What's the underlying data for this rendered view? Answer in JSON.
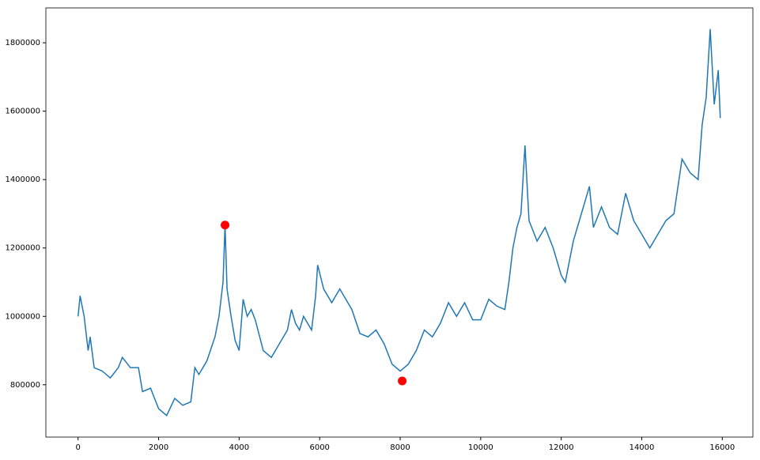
{
  "chart_data": {
    "type": "line",
    "x": [
      0,
      50,
      150,
      250,
      300,
      400,
      600,
      800,
      1000,
      1100,
      1300,
      1500,
      1600,
      1800,
      2000,
      2200,
      2400,
      2600,
      2800,
      2900,
      3000,
      3200,
      3400,
      3500,
      3600,
      3650,
      3700,
      3800,
      3900,
      4000,
      4100,
      4200,
      4300,
      4400,
      4600,
      4800,
      5000,
      5200,
      5300,
      5400,
      5500,
      5600,
      5800,
      5900,
      5950,
      6100,
      6300,
      6500,
      6700,
      6800,
      7000,
      7200,
      7400,
      7600,
      7800,
      8000,
      8200,
      8400,
      8600,
      8800,
      9000,
      9200,
      9400,
      9600,
      9800,
      10000,
      10200,
      10400,
      10600,
      10700,
      10800,
      10900,
      11000,
      11100,
      11200,
      11400,
      11600,
      11800,
      12000,
      12100,
      12300,
      12400,
      12600,
      12700,
      12800,
      13000,
      13200,
      13400,
      13600,
      13800,
      14000,
      14200,
      14400,
      14600,
      14800,
      15000,
      15200,
      15400,
      15500,
      15600,
      15700,
      15800,
      15900,
      15950
    ],
    "series": [
      {
        "color": "#1f77b4",
        "values": [
          1000000,
          1060000,
          1000000,
          900000,
          940000,
          850000,
          840000,
          820000,
          850000,
          880000,
          850000,
          850000,
          780000,
          790000,
          730000,
          710000,
          760000,
          740000,
          750000,
          850000,
          830000,
          870000,
          940000,
          1000000,
          1100000,
          1267000,
          1080000,
          1000000,
          930000,
          900000,
          1050000,
          1000000,
          1020000,
          990000,
          900000,
          880000,
          920000,
          960000,
          1020000,
          980000,
          960000,
          1000000,
          960000,
          1060000,
          1150000,
          1080000,
          1040000,
          1080000,
          1040000,
          1020000,
          950000,
          940000,
          960000,
          920000,
          860000,
          840000,
          860000,
          900000,
          960000,
          940000,
          980000,
          1040000,
          1000000,
          1040000,
          990000,
          990000,
          1050000,
          1030000,
          1020000,
          1100000,
          1200000,
          1260000,
          1300000,
          1500000,
          1280000,
          1220000,
          1260000,
          1200000,
          1120000,
          1100000,
          1220000,
          1260000,
          1340000,
          1380000,
          1260000,
          1320000,
          1260000,
          1240000,
          1360000,
          1280000,
          1240000,
          1200000,
          1240000,
          1280000,
          1300000,
          1460000,
          1420000,
          1400000,
          1560000,
          1640000,
          1840000,
          1620000,
          1720000,
          1580000
        ]
      }
    ],
    "points": {
      "color": "red",
      "x": [
        3650,
        8050
      ],
      "values": [
        1267000,
        811000
      ]
    },
    "xlim": [
      -800,
      16760
    ],
    "ylim": [
      647000,
      1902000
    ],
    "xticks": [
      0,
      2000,
      4000,
      6000,
      8000,
      10000,
      12000,
      14000,
      16000
    ],
    "yticks": [
      800000,
      1000000,
      1200000,
      1400000,
      1600000,
      1800000
    ]
  }
}
